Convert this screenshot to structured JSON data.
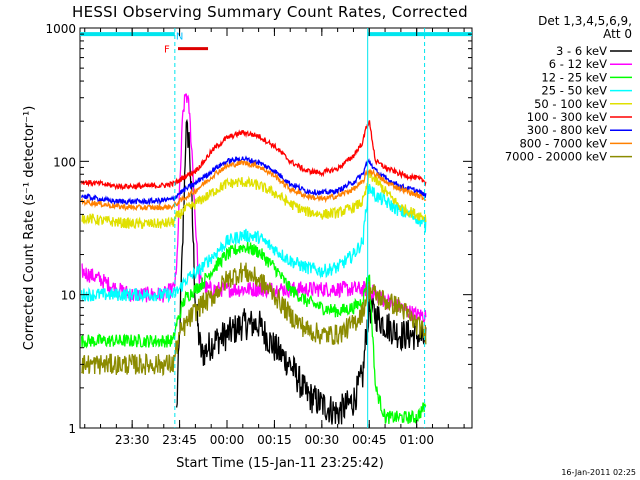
{
  "chart_data": {
    "type": "line",
    "title": "HESSI Observing Summary Count Rates, Corrected",
    "xlabel": "Start Time (15-Jan-11 23:25:42)",
    "ylabel": "Corrected Count Rate (s⁻¹ detector⁻¹)",
    "yscale": "log",
    "ylim": [
      1,
      1000
    ],
    "xlim_minutes": [
      -16.5,
      107.5
    ],
    "x_ticks": [
      {
        "minute": 0,
        "label": "23:30"
      },
      {
        "minute": 15,
        "label": "23:45"
      },
      {
        "minute": 30,
        "label": "00:00"
      },
      {
        "minute": 45,
        "label": "00:15"
      },
      {
        "minute": 60,
        "label": "00:30"
      },
      {
        "minute": 75,
        "label": "00:45"
      },
      {
        "minute": 90,
        "label": "01:00"
      }
    ],
    "y_ticks": [
      {
        "value": 1,
        "label": "1"
      },
      {
        "value": 10,
        "label": "10"
      },
      {
        "value": 100,
        "label": "100"
      },
      {
        "value": 1000,
        "label": "1000"
      }
    ],
    "legend": {
      "header": [
        "Det 1,3,4,5,6,9,",
        "Att 0"
      ],
      "position": "right"
    },
    "annotations": {
      "night_marks": [
        {
          "minute_start": -16.5,
          "minute_end": 13.5,
          "value": 900
        },
        {
          "minute_start": 74.5,
          "minute_end": 107.5,
          "value": 900
        }
      ],
      "day_boundaries": [
        {
          "minute": 13.5,
          "style": "dashed"
        },
        {
          "minute": 74.5,
          "style": "solid"
        },
        {
          "minute": 92.5,
          "style": "dashed"
        }
      ],
      "flag_labels": [
        {
          "text": "N",
          "minute": 15,
          "value": 880,
          "color": "#00bfff"
        },
        {
          "text": "F",
          "minute": 11,
          "value": 700,
          "color": "#ff0000"
        }
      ],
      "flare_bar": {
        "minute_start": 14.5,
        "minute_end": 24,
        "value": 700,
        "color": "#dd0000"
      }
    },
    "x_minutes": [
      -16,
      -10,
      -5,
      0,
      5,
      10,
      13,
      14,
      15,
      16,
      17,
      18,
      19,
      20,
      21,
      22,
      24,
      26,
      30,
      35,
      40,
      45,
      50,
      55,
      60,
      65,
      70,
      73,
      74,
      75,
      77,
      80,
      85,
      90,
      93
    ],
    "series": [
      {
        "name": "3 - 6 keV",
        "color": "#000000",
        "values": [
          null,
          null,
          null,
          null,
          null,
          null,
          null,
          1.2,
          5,
          25,
          170,
          150,
          40,
          9,
          5,
          3.5,
          4,
          4.5,
          5,
          6,
          6,
          4,
          3,
          1.8,
          1.5,
          1.3,
          1.6,
          2.5,
          5,
          8,
          7,
          6,
          5,
          5,
          4.5
        ]
      },
      {
        "name": "6 - 12 keV",
        "color": "#ff00ff",
        "values": [
          15,
          13,
          11,
          10,
          10,
          10,
          11,
          14,
          60,
          220,
          330,
          250,
          110,
          35,
          14,
          12,
          11,
          11,
          11,
          11,
          11,
          11,
          11,
          11,
          11,
          11,
          11,
          11,
          11,
          11,
          10,
          9,
          8,
          7,
          7
        ]
      },
      {
        "name": "12 - 25 keV",
        "color": "#00ff00",
        "values": [
          4.5,
          4.5,
          4.5,
          4.5,
          4.5,
          4.5,
          4.5,
          6,
          7,
          8.5,
          9.5,
          10,
          10.5,
          11,
          11.5,
          12,
          14,
          16,
          20,
          23,
          21,
          16,
          11,
          9,
          8,
          7.5,
          8,
          9,
          12,
          14,
          2,
          1.2,
          1.2,
          1.2,
          1.5
        ]
      },
      {
        "name": "25 - 50 keV",
        "color": "#00ffff",
        "values": [
          10,
          10,
          10,
          10,
          10,
          10,
          10,
          10.5,
          11,
          12,
          13,
          13.5,
          14,
          14.5,
          15,
          16,
          18,
          20,
          25,
          28,
          27,
          22,
          18,
          16,
          15,
          16,
          20,
          25,
          45,
          65,
          55,
          50,
          42,
          38,
          32
        ]
      },
      {
        "name": "50 - 100 keV",
        "color": "#e0e000",
        "values": [
          38,
          36,
          35,
          34,
          34,
          34,
          35,
          38,
          40,
          42,
          44,
          45,
          46,
          48,
          50,
          52,
          55,
          60,
          68,
          70,
          66,
          58,
          48,
          42,
          40,
          41,
          45,
          50,
          60,
          80,
          72,
          60,
          45,
          40,
          38
        ]
      },
      {
        "name": "100 - 300 keV",
        "color": "#ff0000",
        "values": [
          70,
          68,
          65,
          65,
          65,
          66,
          68,
          70,
          72,
          75,
          78,
          80,
          82,
          85,
          90,
          95,
          110,
          125,
          150,
          165,
          155,
          130,
          100,
          85,
          82,
          88,
          110,
          140,
          180,
          200,
          100,
          90,
          80,
          75,
          70
        ]
      },
      {
        "name": "300 - 800 keV",
        "color": "#0000ff",
        "values": [
          55,
          52,
          50,
          50,
          50,
          51,
          52,
          55,
          58,
          60,
          62,
          64,
          66,
          68,
          72,
          75,
          80,
          88,
          100,
          105,
          98,
          85,
          68,
          60,
          58,
          60,
          70,
          80,
          95,
          100,
          85,
          75,
          65,
          60,
          55
        ]
      },
      {
        "name": "800 - 7000 keV",
        "color": "#ff8000",
        "values": [
          50,
          48,
          46,
          45,
          45,
          45,
          46,
          48,
          50,
          52,
          54,
          56,
          58,
          60,
          63,
          66,
          72,
          80,
          92,
          98,
          92,
          78,
          62,
          55,
          52,
          55,
          62,
          70,
          80,
          85,
          80,
          70,
          62,
          56,
          52
        ]
      },
      {
        "name": "7000 - 20000 keV",
        "color": "#8b8b00",
        "values": [
          3,
          3,
          3,
          3,
          3,
          3,
          3,
          4,
          5,
          5.5,
          6,
          6.5,
          7,
          7.5,
          8,
          8.5,
          9,
          10,
          13,
          15,
          13,
          10,
          7,
          5.5,
          5,
          5,
          6,
          7.5,
          9.5,
          11,
          10,
          9,
          8,
          6,
          5
        ]
      }
    ]
  },
  "footer": {
    "date": "16-Jan-2011 02:25"
  }
}
